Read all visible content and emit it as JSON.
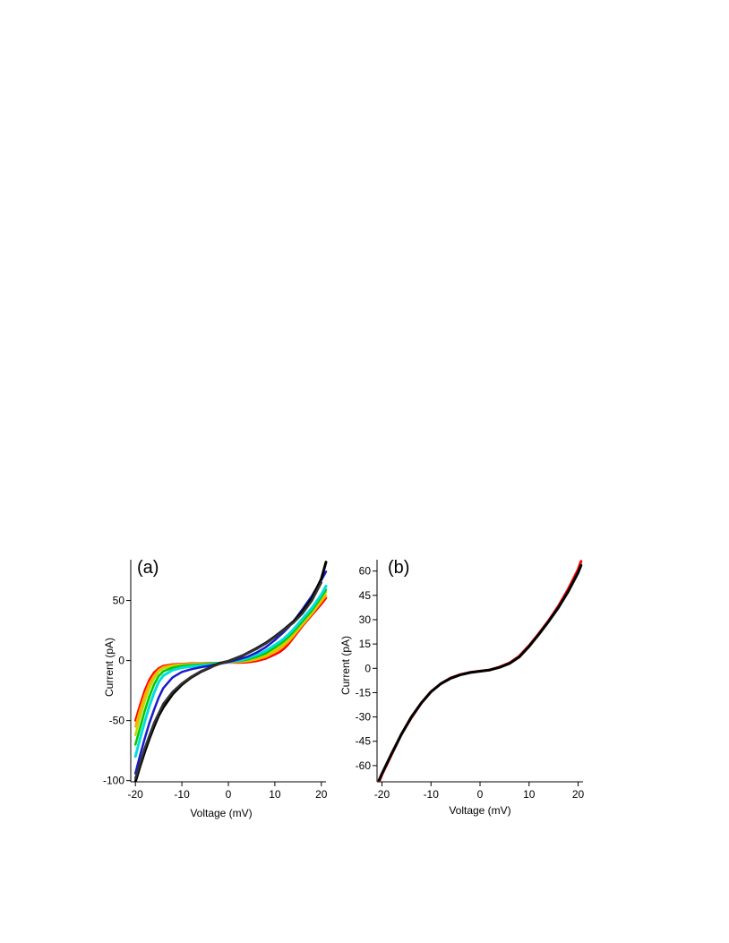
{
  "chart_data": [
    {
      "panel_label": "(a)",
      "type": "line",
      "xlabel": "Voltage (mV)",
      "ylabel": "Current (pA)",
      "xlim": [
        -21,
        21
      ],
      "ylim": [
        -101,
        84
      ],
      "xticks": [
        -20,
        -10,
        0,
        10,
        20
      ],
      "yticks": [
        -100,
        -50,
        0,
        50
      ],
      "grid": false,
      "legend": "none",
      "series": [
        {
          "color": "#ff0000",
          "x": [
            -20,
            -19,
            -18,
            -17,
            -16,
            -15,
            -14,
            -12,
            -10,
            -8,
            -6,
            -4,
            -2,
            0,
            2,
            4,
            6,
            8,
            10,
            11,
            12,
            13,
            14,
            16,
            18,
            20,
            21
          ],
          "y": [
            -50,
            -37,
            -25,
            -16,
            -10,
            -6.5,
            -4.5,
            -3.2,
            -2.8,
            -2.4,
            -2.3,
            -2.1,
            -1.9,
            -1.6,
            -1.8,
            -1.5,
            -0.5,
            1.5,
            5,
            7,
            10,
            14,
            19,
            29,
            38,
            47,
            52
          ]
        },
        {
          "color": "#ffaa00",
          "x": [
            -20,
            -19,
            -18,
            -17,
            -16,
            -15,
            -14,
            -12,
            -10,
            -8,
            -6,
            -4,
            -2,
            0,
            2,
            4,
            6,
            8,
            10,
            11,
            12,
            13,
            14,
            16,
            18,
            20,
            21
          ],
          "y": [
            -55,
            -41,
            -29,
            -19,
            -12.5,
            -8,
            -5.5,
            -3.8,
            -3.2,
            -2.8,
            -2.6,
            -2.4,
            -2,
            -1.6,
            -1.3,
            -0.6,
            0.8,
            3,
            7,
            9.5,
            12.5,
            16,
            20.5,
            30,
            39,
            49,
            54
          ]
        },
        {
          "color": "#c8d400",
          "x": [
            -20,
            -19,
            -18,
            -17,
            -16,
            -15,
            -14,
            -12,
            -10,
            -8,
            -6,
            -4,
            -2,
            0,
            2,
            4,
            6,
            8,
            10,
            11,
            12,
            13,
            14,
            16,
            18,
            20,
            21
          ],
          "y": [
            -62,
            -47,
            -34,
            -23,
            -15,
            -9.5,
            -6.5,
            -4.5,
            -3.5,
            -3.1,
            -2.8,
            -2.5,
            -2,
            -1.5,
            -1,
            0,
            1.8,
            4.5,
            9,
            11.5,
            14.5,
            18,
            22,
            31,
            40,
            51,
            57
          ]
        },
        {
          "color": "#00c800",
          "x": [
            -20,
            -19,
            -18,
            -17,
            -16,
            -15,
            -14,
            -12,
            -10,
            -8,
            -6,
            -4,
            -2,
            0,
            2,
            4,
            6,
            8,
            10,
            11,
            12,
            13,
            14,
            16,
            18,
            20,
            21
          ],
          "y": [
            -70,
            -56,
            -42,
            -30,
            -20,
            -13,
            -9,
            -6,
            -4.5,
            -3.8,
            -3.3,
            -2.8,
            -2,
            -1.2,
            -0.5,
            0.8,
            3,
            6,
            11,
            13.5,
            16.5,
            20,
            24,
            33,
            42,
            53,
            59
          ]
        },
        {
          "color": "#00dddd",
          "x": [
            -20,
            -19,
            -18,
            -17,
            -16,
            -15,
            -14,
            -12,
            -10,
            -8,
            -6,
            -4,
            -2,
            0,
            2,
            4,
            6,
            8,
            10,
            11,
            12,
            13,
            14,
            16,
            18,
            20,
            21
          ],
          "y": [
            -80,
            -65,
            -51,
            -38,
            -27,
            -18,
            -12.5,
            -8,
            -6,
            -5,
            -4.2,
            -3.4,
            -2.4,
            -1.2,
            0,
            1.8,
            4.5,
            8,
            13,
            15.5,
            18.5,
            22,
            26,
            35,
            44,
            55,
            62
          ]
        },
        {
          "color": "#1a1acc",
          "x": [
            -20,
            -19,
            -18,
            -17,
            -16,
            -15,
            -14,
            -12,
            -10,
            -8,
            -6,
            -4,
            -2,
            0,
            2,
            4,
            6,
            8,
            10,
            11,
            12,
            13,
            14,
            16,
            18,
            20,
            21
          ],
          "y": [
            -94,
            -79,
            -65,
            -52,
            -41,
            -31,
            -23,
            -14,
            -9.5,
            -7.2,
            -5.6,
            -4.3,
            -2.8,
            -1.2,
            0.8,
            3,
            6.5,
            11,
            17,
            20.5,
            24,
            28,
            32.5,
            43,
            54,
            67,
            74
          ]
        },
        {
          "color": "#000000",
          "x": [
            -20,
            -19,
            -18,
            -17,
            -16,
            -15,
            -14,
            -12,
            -10,
            -8,
            -6,
            -4,
            -3,
            -2,
            -1,
            0,
            1,
            2,
            3,
            4,
            6,
            8,
            10,
            12,
            14,
            16,
            18,
            20,
            21
          ],
          "y": [
            -101,
            -88,
            -76,
            -65,
            -55,
            -46,
            -39,
            -28,
            -20,
            -14,
            -9.5,
            -6,
            -4,
            -2.5,
            -1.5,
            -0.5,
            1,
            2.5,
            4,
            6,
            10,
            14.5,
            20,
            26,
            32.5,
            41,
            52,
            68,
            82
          ]
        },
        {
          "color": "#333333",
          "x": [
            -20,
            -18,
            -16,
            -14,
            -12,
            -10,
            -8,
            -6,
            -4,
            -2,
            0,
            2,
            4,
            6,
            8,
            10,
            12,
            14,
            16,
            18,
            20
          ],
          "y": [
            -98,
            -73,
            -52,
            -36,
            -26,
            -19,
            -13.5,
            -9,
            -5.8,
            -3,
            -0.5,
            2.3,
            5.8,
            9.5,
            14,
            19.5,
            25.5,
            31.5,
            39.5,
            50,
            65
          ]
        }
      ]
    },
    {
      "panel_label": "(b)",
      "type": "line",
      "xlabel": "Voltage (mV)",
      "ylabel": "Current (pA)",
      "xlim": [
        -21,
        21
      ],
      "ylim": [
        -70,
        67
      ],
      "xticks": [
        -20,
        -10,
        0,
        10,
        20
      ],
      "yticks": [
        -60,
        -45,
        -30,
        -15,
        0,
        15,
        30,
        45,
        60
      ],
      "grid": false,
      "legend": "none",
      "series": [
        {
          "color": "#ff0000",
          "x": [
            -20.6,
            -20,
            -18,
            -16,
            -14,
            -12,
            -10,
            -8,
            -6,
            -4,
            -2,
            0,
            2,
            4,
            6,
            8,
            10,
            12,
            14,
            16,
            18,
            20,
            20.6
          ],
          "y": [
            -70,
            -65.5,
            -53,
            -40.5,
            -30.5,
            -21.5,
            -14.5,
            -9.5,
            -6,
            -3.8,
            -2.5,
            -1.8,
            -1,
            0.8,
            3.3,
            7.5,
            14,
            21.5,
            29.5,
            38.5,
            49,
            61,
            66
          ]
        },
        {
          "color": "#000000",
          "x": [
            -20.6,
            -20,
            -18,
            -16,
            -14,
            -12,
            -10,
            -8,
            -6,
            -4,
            -2,
            0,
            2,
            4,
            6,
            8,
            10,
            12,
            14,
            16,
            18,
            20,
            20.6
          ],
          "y": [
            -69,
            -65,
            -52.5,
            -40.5,
            -30,
            -21.5,
            -14.5,
            -9.5,
            -6.2,
            -4,
            -2.6,
            -1.8,
            -1,
            0.6,
            3,
            7,
            13.5,
            21,
            29,
            37.5,
            47.5,
            59,
            63.5
          ]
        }
      ]
    }
  ]
}
